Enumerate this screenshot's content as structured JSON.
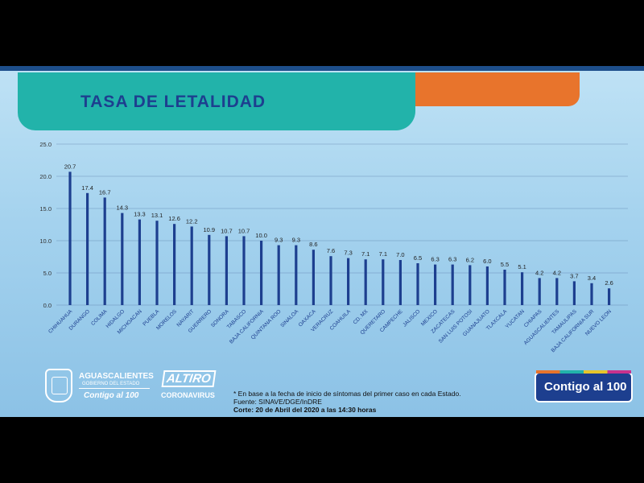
{
  "slide": {
    "title": "TASA DE LETALIDAD",
    "footnote": "* En base a la fecha de inicio de síntomas del primer caso en cada Estado.",
    "source": "Fuente: SINAVE/DGE/InDRE",
    "cutoff": "Corte: 20 de Abril del 2020 a las 14:30 horas",
    "logos": {
      "ags_name": "AGUASCALIENTES",
      "ags_sub": "GOBIERNO DEL ESTADO",
      "ags_contigo": "Contigo al 100",
      "altiro_top": "ALTIRO",
      "altiro_bottom": "CORONAVIRUS",
      "contigo_badge": "Contigo al 100"
    }
  },
  "colors": {
    "bar": "#1d3f8f",
    "title": "#1d3f8f",
    "banner_teal": "#22b3aa",
    "banner_orange": "#e8742c"
  },
  "chart_data": {
    "type": "bar",
    "title": "TASA DE LETALIDAD",
    "categories": [
      "CHIHUAHUA",
      "DURANGO",
      "COLIMA",
      "HIDALGO",
      "MICHOACAN",
      "PUEBLA",
      "MORELOS",
      "NAYARIT",
      "GUERRERO",
      "SONORA",
      "TABASCO",
      "BAJA CALIFORNIA",
      "QUINTANA ROO",
      "SINALOA",
      "OAXACA",
      "VERACRUZ",
      "COAHUILA",
      "CD. MX",
      "QUERETARO",
      "CAMPECHE",
      "JALISCO",
      "MEXICO",
      "ZACATECAS",
      "SAN LUIS POTOSI",
      "GUANAJUATO",
      "TLAXCALA",
      "YUCATAN",
      "CHIAPAS",
      "AGUASCALIENTES",
      "TAMAULIPAS",
      "BAJA CALIFORNIA SUR",
      "NUEVO LEON"
    ],
    "values": [
      20.7,
      17.4,
      16.7,
      14.3,
      13.3,
      13.1,
      12.6,
      12.2,
      10.9,
      10.7,
      10.7,
      10.0,
      9.3,
      9.3,
      8.6,
      7.6,
      7.3,
      7.1,
      7.1,
      7.0,
      6.5,
      6.3,
      6.3,
      6.2,
      6.0,
      5.5,
      5.1,
      4.2,
      4.2,
      3.7,
      3.4,
      2.6
    ],
    "data_labels": [
      "20.7",
      "17.4",
      "16.7",
      "14.3",
      "13.3",
      "13.1",
      "12.6",
      "12.2",
      "10.9",
      "10.7",
      "10.7",
      "10.0",
      "9.3",
      "9.3",
      "8.6",
      "7.6",
      "7.3",
      "7.1",
      "7.1",
      "7.0",
      "6.5",
      "6.3",
      "6.3",
      "6.2",
      "6.0",
      "5.5",
      "5.1",
      "4.2",
      "4.2",
      "3.7",
      "3.4",
      "2.6"
    ],
    "yticks": [
      "0.0",
      "5.0",
      "10.0",
      "15.0",
      "20.0",
      "25.0"
    ],
    "ylim": [
      0,
      25
    ],
    "grid": true
  }
}
